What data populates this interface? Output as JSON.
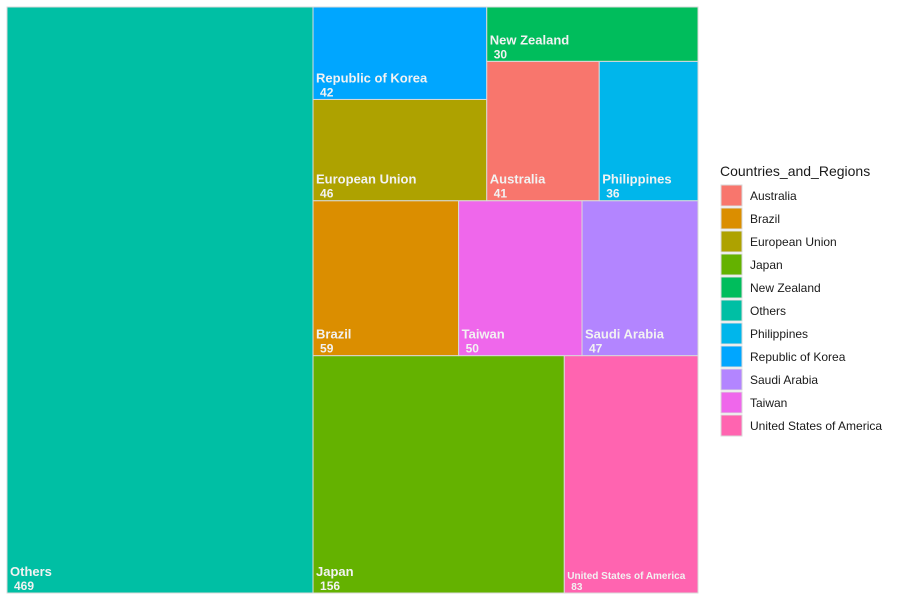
{
  "chart_data": {
    "type": "treemap",
    "legend_title": "Countries_and_Regions",
    "legend_position": "right",
    "items": [
      {
        "name": "Others",
        "value": 469,
        "color": "#00BFA4"
      },
      {
        "name": "Japan",
        "value": 156,
        "color": "#64B200"
      },
      {
        "name": "United States of America",
        "value": 83,
        "color": "#FF64B0"
      },
      {
        "name": "Brazil",
        "value": 59,
        "color": "#DB8E00"
      },
      {
        "name": "Taiwan",
        "value": 50,
        "color": "#EF67EB"
      },
      {
        "name": "Saudi Arabia",
        "value": 47,
        "color": "#B385FF"
      },
      {
        "name": "European Union",
        "value": 46,
        "color": "#AEA200"
      },
      {
        "name": "Republic of Korea",
        "value": 42,
        "color": "#00A6FF"
      },
      {
        "name": "Australia",
        "value": 41,
        "color": "#F8766D"
      },
      {
        "name": "Philippines",
        "value": 36,
        "color": "#00B6EB"
      },
      {
        "name": "New Zealand",
        "value": 30,
        "color": "#00BD5C"
      }
    ],
    "legend": [
      {
        "name": "Australia",
        "color": "#F8766D"
      },
      {
        "name": "Brazil",
        "color": "#DB8E00"
      },
      {
        "name": "European Union",
        "color": "#AEA200"
      },
      {
        "name": "Japan",
        "color": "#64B200"
      },
      {
        "name": "New Zealand",
        "color": "#00BD5C"
      },
      {
        "name": "Others",
        "color": "#00BFA4"
      },
      {
        "name": "Philippines",
        "color": "#00B6EB"
      },
      {
        "name": "Republic of Korea",
        "color": "#00A6FF"
      },
      {
        "name": "Saudi Arabia",
        "color": "#B385FF"
      },
      {
        "name": "Taiwan",
        "color": "#EF67EB"
      },
      {
        "name": "United States of America",
        "color": "#FF64B0"
      }
    ]
  }
}
